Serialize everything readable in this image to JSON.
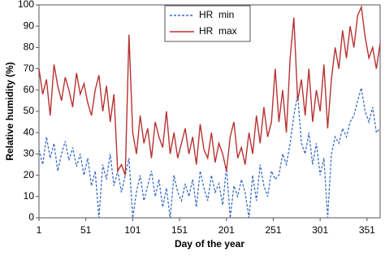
{
  "chart_data": {
    "type": "line",
    "xlabel": "Day of the year",
    "ylabel": "Relative humidity (%)",
    "x": [
      1,
      5,
      9,
      13,
      17,
      21,
      25,
      29,
      33,
      37,
      41,
      45,
      49,
      53,
      57,
      61,
      65,
      69,
      73,
      77,
      81,
      85,
      89,
      93,
      97,
      101,
      105,
      109,
      113,
      117,
      121,
      125,
      129,
      133,
      137,
      141,
      145,
      149,
      153,
      157,
      161,
      165,
      169,
      173,
      177,
      181,
      185,
      189,
      193,
      197,
      201,
      205,
      209,
      213,
      217,
      221,
      225,
      229,
      233,
      237,
      241,
      245,
      249,
      253,
      257,
      261,
      265,
      269,
      273,
      277,
      281,
      285,
      289,
      293,
      297,
      301,
      305,
      309,
      313,
      317,
      321,
      325,
      329,
      333,
      337,
      341,
      345,
      349,
      353,
      357,
      361,
      365
    ],
    "series": [
      {
        "name": "HR  min",
        "color": "#3a6cc6",
        "style": "dashed",
        "values": [
          32,
          25,
          38,
          28,
          35,
          22,
          30,
          36,
          27,
          33,
          24,
          30,
          20,
          28,
          15,
          22,
          0,
          25,
          18,
          30,
          15,
          22,
          12,
          20,
          28,
          0,
          12,
          20,
          8,
          15,
          22,
          10,
          18,
          5,
          14,
          0,
          20,
          12,
          8,
          16,
          10,
          18,
          5,
          22,
          14,
          8,
          20,
          12,
          16,
          6,
          24,
          0,
          15,
          10,
          18,
          12,
          0,
          20,
          8,
          25,
          15,
          10,
          22,
          18,
          20,
          30,
          25,
          35,
          48,
          58,
          35,
          30,
          40,
          25,
          35,
          20,
          28,
          0,
          30,
          38,
          35,
          42,
          38,
          45,
          48,
          55,
          61,
          50,
          45,
          52,
          40,
          42
        ]
      },
      {
        "name": "HR  max",
        "color": "#b83232",
        "style": "solid",
        "values": [
          70,
          58,
          65,
          48,
          72,
          62,
          55,
          66,
          60,
          52,
          68,
          58,
          63,
          54,
          48,
          60,
          67,
          50,
          62,
          45,
          58,
          22,
          25,
          20,
          86,
          40,
          30,
          48,
          35,
          42,
          28,
          45,
          38,
          33,
          50,
          30,
          40,
          28,
          35,
          42,
          30,
          38,
          25,
          44,
          32,
          28,
          40,
          26,
          35,
          30,
          22,
          38,
          45,
          28,
          33,
          25,
          40,
          30,
          48,
          35,
          52,
          38,
          45,
          70,
          45,
          60,
          40,
          75,
          94,
          55,
          65,
          48,
          70,
          45,
          60,
          50,
          72,
          42,
          65,
          80,
          70,
          88,
          75,
          90,
          80,
          95,
          99,
          85,
          75,
          80,
          70,
          82
        ]
      }
    ],
    "xlim": [
      1,
      365
    ],
    "xticks": [
      1,
      51,
      101,
      151,
      201,
      251,
      301,
      351
    ],
    "ylim": [
      0,
      100
    ],
    "yticks": [
      0,
      10,
      20,
      30,
      40,
      50,
      60,
      70,
      80,
      90,
      100
    ],
    "grid": false,
    "legend": "upper center"
  }
}
